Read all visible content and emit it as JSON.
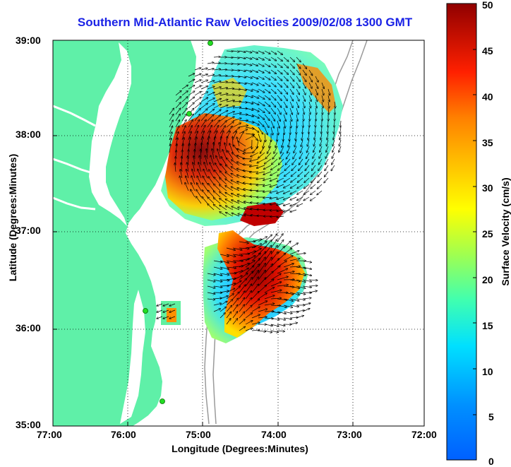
{
  "title": "Southern Mid-Atlantic Raw Velocities 2009/02/08 1300 GMT",
  "xlabel": "Longitude (Degrees:Minutes)",
  "ylabel": "Latitude (Degrees:Minutes)",
  "colorbar_label": "Surface Velocity (cm/s)",
  "x_ticks": [
    "77:00",
    "76:00",
    "75:00",
    "74:00",
    "73:00",
    "72:00"
  ],
  "y_ticks": [
    "39:00",
    "38:00",
    "37:00",
    "36:00",
    "35:00"
  ],
  "colorbar_ticks": [
    "50",
    "45",
    "40",
    "35",
    "30",
    "25",
    "20",
    "15",
    "10",
    "5",
    "0"
  ],
  "colors": {
    "land": "#5ff0a8",
    "title": "#1a22e6",
    "bathymetry": "#9a9a9a",
    "station": "#22dd22"
  },
  "colorbar": {
    "min": 0,
    "max": 50,
    "units": "cm/s",
    "colormap": "jet"
  },
  "map": {
    "lon_range": [
      -77,
      -72
    ],
    "lat_range": [
      35,
      39
    ],
    "grid": "dotted"
  }
}
